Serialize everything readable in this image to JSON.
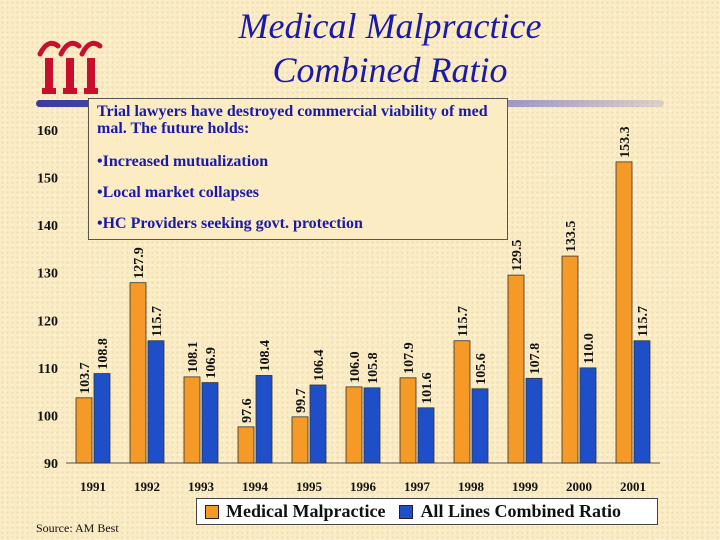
{
  "title_line1": "Medical Malpractice",
  "title_line2": "Combined Ratio",
  "logo": {
    "name": "iii-logo",
    "color": "#c8102e"
  },
  "note": {
    "intro": "Trial lawyers have destroyed commercial viability of med mal.  The future holds:",
    "bullets": [
      "Increased mutualization",
      "Local market collapses",
      "HC Providers seeking govt. protection"
    ]
  },
  "source": "Source: AM Best",
  "colors": {
    "med_mal": "#f59a26",
    "all_lines": "#1f4fc8",
    "title": "#1a1aa8",
    "background": "#fbecc4"
  },
  "chart_data": {
    "type": "bar",
    "title": "Medical Malpractice Combined Ratio",
    "categories": [
      "1991",
      "1992",
      "1993",
      "1994",
      "1995",
      "1996",
      "1997",
      "1998",
      "1999",
      "2000",
      "2001"
    ],
    "series": [
      {
        "name": "Medical Malpractice",
        "values": [
          103.7,
          127.9,
          108.1,
          97.6,
          99.7,
          106.0,
          107.9,
          115.7,
          129.5,
          133.5,
          153.3
        ],
        "color": "#f59a26"
      },
      {
        "name": "All Lines Combined Ratio",
        "values": [
          108.8,
          115.7,
          106.9,
          108.4,
          106.4,
          105.8,
          101.6,
          105.6,
          107.8,
          110.0,
          115.7
        ],
        "color": "#1f4fc8"
      }
    ],
    "labels": [
      [
        "103.7",
        "127.9",
        "108.1",
        "97.6",
        "99.7",
        "106.0",
        "107.9",
        "115.7",
        "129.5",
        "133.5",
        "153.3"
      ],
      [
        "108.8",
        "115.7",
        "106.9",
        "108.4",
        "106.4",
        "105.8",
        "101.6",
        "105.6",
        "107.8",
        "110.0",
        "115.7"
      ]
    ],
    "yticks": [
      "90",
      "100",
      "110",
      "120",
      "130",
      "140",
      "150",
      "160"
    ],
    "ylim": [
      90,
      160
    ],
    "xlabel": "",
    "ylabel": "",
    "grid": false,
    "legend": "bottom"
  }
}
